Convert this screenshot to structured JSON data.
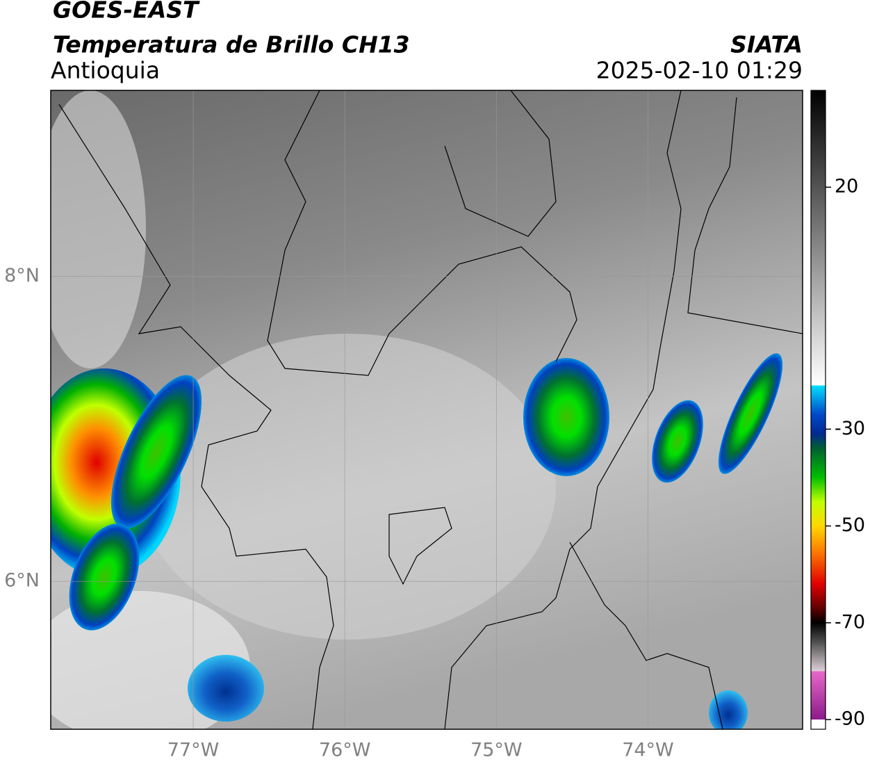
{
  "header": {
    "title": "GOES-EAST",
    "subtitle": "Temperatura de Brillo CH13",
    "region": "Antioquia",
    "source": "SIATA",
    "datetime": "2025-02-10 01:29"
  },
  "map": {
    "xlim": [
      -77.94,
      -72.98
    ],
    "ylim": [
      5.03,
      9.22
    ],
    "xticks": [
      {
        "value": -77,
        "label": "77°W"
      },
      {
        "value": -76,
        "label": "76°W"
      },
      {
        "value": -75,
        "label": "75°W"
      },
      {
        "value": -74,
        "label": "74°W"
      }
    ],
    "yticks": [
      {
        "value": 8,
        "label": "8°N"
      },
      {
        "value": 6,
        "label": "6°N"
      }
    ],
    "grid": true
  },
  "colorbar": {
    "lim": [
      -92,
      40
    ],
    "ticks": [
      20,
      -30,
      -50,
      -70,
      -90
    ],
    "colormap": [
      {
        "value": -92,
        "color": "#ffffff"
      },
      {
        "value": -90,
        "color": "#ffffff"
      },
      {
        "value": -90,
        "color": "#8b1a8b"
      },
      {
        "value": -80,
        "color": "#e868c8"
      },
      {
        "value": -80,
        "color": "#ddd0d8"
      },
      {
        "value": -74,
        "color": "#505050"
      },
      {
        "value": -70,
        "color": "#000000"
      },
      {
        "value": -67,
        "color": "#600000"
      },
      {
        "value": -62,
        "color": "#e00000"
      },
      {
        "value": -55,
        "color": "#ff8000"
      },
      {
        "value": -50,
        "color": "#ffd800"
      },
      {
        "value": -45,
        "color": "#c0ff00"
      },
      {
        "value": -40,
        "color": "#00c000"
      },
      {
        "value": -34,
        "color": "#006030"
      },
      {
        "value": -31,
        "color": "#002a90"
      },
      {
        "value": -27,
        "color": "#0048c8"
      },
      {
        "value": -21,
        "color": "#00e0ff"
      },
      {
        "value": -21,
        "color": "#ffffff"
      },
      {
        "value": 40,
        "color": "#000000"
      }
    ]
  }
}
